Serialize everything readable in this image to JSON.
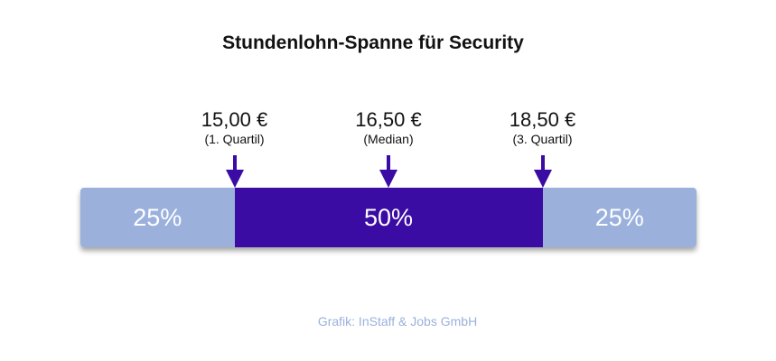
{
  "chart_data": {
    "type": "bar",
    "title": "Stundenlohn-Spanne für Security",
    "segments": [
      {
        "label": "25%",
        "share": 25,
        "color": "#9bb1dc"
      },
      {
        "label": "50%",
        "share": 50,
        "color": "#3a0ca3"
      },
      {
        "label": "25%",
        "share": 25,
        "color": "#9bb1dc"
      }
    ],
    "markers": [
      {
        "value": "15,00 €",
        "label": "(1. Quartil)",
        "cumulative_share": 25
      },
      {
        "value": "16,50 €",
        "label": "(Median)",
        "cumulative_share": 50
      },
      {
        "value": "18,50 €",
        "label": "(3. Quartil)",
        "cumulative_share": 75
      }
    ],
    "source": "Grafik: InStaff & Jobs GmbH",
    "arrow_color": "#3a0ca3",
    "source_color": "#9bb1dc"
  }
}
